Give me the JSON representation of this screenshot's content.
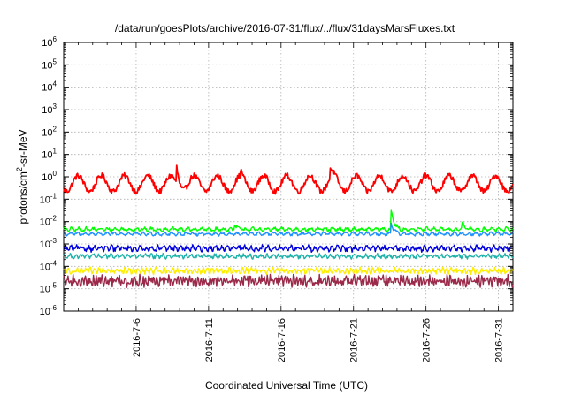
{
  "chart_data": {
    "type": "line",
    "title": "/data/run/goesPlots/archive/2016-07-31/flux/../flux/31daysMarsFluxes.txt",
    "xlabel": "Coordinated Universal Time (UTC)",
    "ylabel_prefix": "protons/cm",
    "ylabel_sup": "2",
    "ylabel_suffix": "-sr-MeV",
    "yscale": "log",
    "ylim_exp": [
      -6,
      6
    ],
    "y_ticks": [
      {
        "base": "10",
        "exp": "-6"
      },
      {
        "base": "10",
        "exp": "-5"
      },
      {
        "base": "10",
        "exp": "-4"
      },
      {
        "base": "10",
        "exp": "-3"
      },
      {
        "base": "10",
        "exp": "-2"
      },
      {
        "base": "10",
        "exp": "-1"
      },
      {
        "base": "10",
        "exp": "0"
      },
      {
        "base": "10",
        "exp": "1"
      },
      {
        "base": "10",
        "exp": "2"
      },
      {
        "base": "10",
        "exp": "3"
      },
      {
        "base": "10",
        "exp": "4"
      },
      {
        "base": "10",
        "exp": "5"
      },
      {
        "base": "10",
        "exp": "6"
      }
    ],
    "x_ticks": [
      {
        "label": "2016-7-6",
        "day": 6
      },
      {
        "label": "2016-7-11",
        "day": 11
      },
      {
        "label": "2016-7-16",
        "day": 16
      },
      {
        "label": "2016-7-21",
        "day": 21
      },
      {
        "label": "2016-7-26",
        "day": 26
      },
      {
        "label": "2016-7-31",
        "day": 31
      }
    ],
    "xlim_day": [
      1.0,
      32.0
    ],
    "grid": true,
    "series": [
      {
        "color": "#ff0000",
        "log_mean": -0.3,
        "log_amp": 0.35,
        "period_days": 1.6,
        "noise": 0.12,
        "spikes": [
          [
            8.8,
            0.75
          ],
          [
            13.2,
            0.25
          ],
          [
            19.4,
            0.45
          ]
        ]
      },
      {
        "color": "#00ff00",
        "log_mean": -2.35,
        "log_amp": 0.06,
        "period_days": 0.5,
        "noise": 0.06,
        "spikes": [
          [
            23.6,
            0.85
          ],
          [
            12.8,
            0.2
          ],
          [
            28.5,
            0.3
          ]
        ]
      },
      {
        "color": "#1e90ff",
        "log_mean": -2.55,
        "log_amp": 0.05,
        "period_days": 0.5,
        "noise": 0.05,
        "spikes": [
          [
            23.6,
            0.5
          ]
        ]
      },
      {
        "color": "#0000dd",
        "log_mean": -3.2,
        "log_amp": 0.08,
        "period_days": 0.4,
        "noise": 0.09,
        "spikes": []
      },
      {
        "color": "#20b2aa",
        "log_mean": -3.55,
        "log_amp": 0.06,
        "period_days": 0.4,
        "noise": 0.07,
        "spikes": []
      },
      {
        "color": "#ffee00",
        "log_mean": -4.2,
        "log_amp": 0.08,
        "period_days": 0.3,
        "noise": 0.09,
        "spikes": []
      },
      {
        "color": "#9b2a4a",
        "log_mean": -4.65,
        "log_amp": 0.1,
        "period_days": 0.2,
        "noise": 0.2,
        "spikes": []
      }
    ]
  }
}
